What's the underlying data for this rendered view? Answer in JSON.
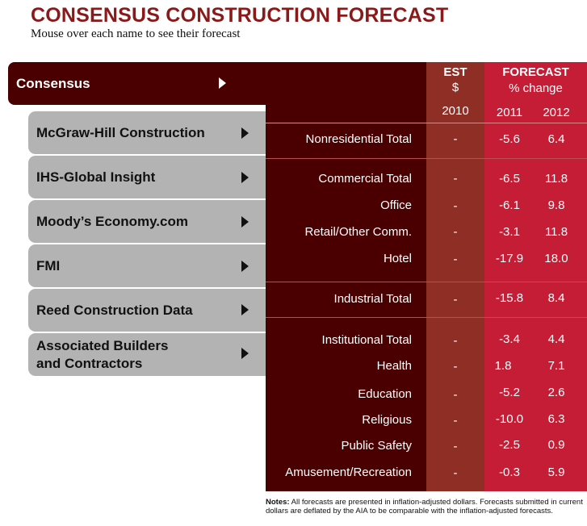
{
  "title": "CONSENSUS CONSTRUCTION FORECAST",
  "subtitle": "Mouse over each name to see their forecast",
  "nav": [
    {
      "label": "Consensus",
      "icon": "arrow-right-icon"
    },
    {
      "label": "McGraw-Hill Construction",
      "icon": "arrow-right-icon"
    },
    {
      "label": "IHS-Global Insight",
      "icon": "arrow-right-icon"
    },
    {
      "label": "Moody’s Economy.com",
      "icon": "arrow-right-icon"
    },
    {
      "label": "FMI",
      "icon": "arrow-right-icon"
    },
    {
      "label": "Reed Construction Data",
      "icon": "arrow-right-icon"
    },
    {
      "label_line1": "Associated Builders",
      "label_line2": "and Contractors",
      "icon": "arrow-right-icon"
    }
  ],
  "table": {
    "header": {
      "est_title": "EST",
      "est_unit": "$",
      "forecast_title": "FORECAST",
      "forecast_unit": "% change",
      "year_est": "2010",
      "year_1": "2011",
      "year_2": "2012"
    },
    "rows": [
      {
        "label": "Nonresidential Total",
        "est": "-",
        "y2011": "-5.6",
        "y2012": "6.4"
      },
      {
        "label": "Commercial Total",
        "est": "-",
        "y2011": "-6.5",
        "y2012": "11.8"
      },
      {
        "label": "Office",
        "est": "-",
        "y2011": "-6.1",
        "y2012": "9.8"
      },
      {
        "label": "Retail/Other Comm.",
        "est": "-",
        "y2011": "-3.1",
        "y2012": "11.8"
      },
      {
        "label": "Hotel",
        "est": "-",
        "y2011": "-17.9",
        "y2012": "18.0"
      },
      {
        "label": "Industrial Total",
        "est": "-",
        "y2011": "-15.8",
        "y2012": "8.4"
      },
      {
        "label": "Institutional Total",
        "est": "-",
        "y2011": "-3.4",
        "y2012": "4.4"
      },
      {
        "label": "Health",
        "est": "-",
        "y2011": "1.8",
        "y2012": "7.1"
      },
      {
        "label": "Education",
        "est": "-",
        "y2011": "-5.2",
        "y2012": "2.6"
      },
      {
        "label": "Religious",
        "est": "-",
        "y2011": "-10.0",
        "y2012": "6.3"
      },
      {
        "label": "Public Safety",
        "est": "-",
        "y2011": "-2.5",
        "y2012": "0.9"
      },
      {
        "label": "Amusement/Recreation",
        "est": "-",
        "y2011": "-0.3",
        "y2012": "5.9"
      }
    ]
  },
  "notes": {
    "label": "Notes:",
    "text": " All forecasts are presented in inflation-adjusted dollars. Forecasts submitted in current dollars are deflated by the AIA to be comparable with the inflation-adjusted forecasts."
  },
  "colors": {
    "title": "#8a1a1a",
    "panel_dark": "#4a0000",
    "est_column": "#8f2e24",
    "forecast_column": "#c41d35",
    "nav_inactive": "#b3b3b3"
  }
}
